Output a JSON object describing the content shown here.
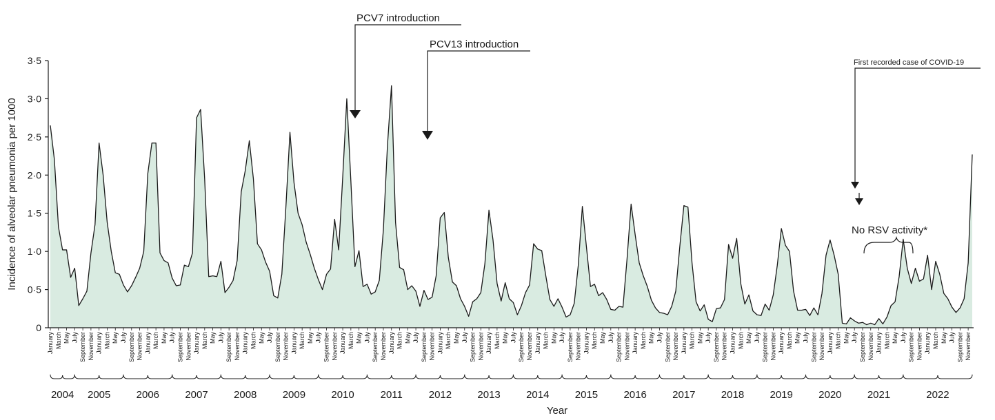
{
  "chart_data": {
    "type": "area",
    "title": "",
    "xlabel": "Year",
    "ylabel": "Incidence of alveolar pneumonia per 1000",
    "ylim": [
      0,
      3.5
    ],
    "yticks": [
      "0",
      "0·5",
      "1·0",
      "1·5",
      "2·0",
      "2·5",
      "3·0",
      "3·5"
    ],
    "ytick_values": [
      0,
      0.5,
      1.0,
      1.5,
      2.0,
      2.5,
      3.0,
      3.5
    ],
    "colors": {
      "fill": "#d9ebe1",
      "line": "#1a1a1a"
    },
    "grid": false,
    "legend": "none",
    "season_start_month": "July",
    "series": [
      {
        "values": [
          2.65,
          2.2,
          1.32,
          1.02,
          1.02,
          0.66,
          0.78,
          0.29,
          0.38,
          0.48,
          0.98,
          1.35,
          2.42,
          2.0,
          1.38,
          1.0,
          0.72,
          0.7,
          0.56,
          0.47,
          0.55,
          0.66,
          0.78,
          1.0,
          2.02,
          2.42,
          2.42,
          0.98,
          0.88,
          0.85,
          0.65,
          0.55,
          0.56,
          0.82,
          0.8,
          0.98,
          2.75,
          2.86,
          1.95,
          0.67,
          0.68,
          0.67,
          0.87,
          0.46,
          0.53,
          0.62,
          0.88,
          1.78,
          2.06,
          2.45,
          1.95,
          1.1,
          1.02,
          0.86,
          0.74,
          0.42,
          0.39,
          0.7,
          1.58,
          2.56,
          1.9,
          1.5,
          1.35,
          1.12,
          0.96,
          0.78,
          0.63,
          0.5,
          0.7,
          0.77,
          1.42,
          1.02,
          1.98,
          3.0,
          1.92,
          0.8,
          1.01,
          0.54,
          0.57,
          0.44,
          0.47,
          0.62,
          1.28,
          2.38,
          3.17,
          1.38,
          0.79,
          0.76,
          0.5,
          0.55,
          0.48,
          0.28,
          0.49,
          0.37,
          0.4,
          0.68,
          1.44,
          1.51,
          0.92,
          0.6,
          0.55,
          0.38,
          0.28,
          0.15,
          0.34,
          0.38,
          0.46,
          0.84,
          1.54,
          1.15,
          0.58,
          0.35,
          0.59,
          0.38,
          0.33,
          0.17,
          0.29,
          0.46,
          0.56,
          1.1,
          1.03,
          1.01,
          0.68,
          0.37,
          0.28,
          0.38,
          0.27,
          0.14,
          0.17,
          0.32,
          0.82,
          1.59,
          1.06,
          0.54,
          0.57,
          0.42,
          0.46,
          0.37,
          0.24,
          0.23,
          0.28,
          0.27,
          0.9,
          1.62,
          1.22,
          0.85,
          0.68,
          0.54,
          0.36,
          0.26,
          0.2,
          0.19,
          0.17,
          0.28,
          0.48,
          1.07,
          1.6,
          1.58,
          0.85,
          0.34,
          0.22,
          0.3,
          0.11,
          0.08,
          0.25,
          0.26,
          0.37,
          1.09,
          0.91,
          1.17,
          0.58,
          0.31,
          0.43,
          0.22,
          0.17,
          0.16,
          0.31,
          0.23,
          0.43,
          0.82,
          1.3,
          1.08,
          1.0,
          0.48,
          0.23,
          0.23,
          0.24,
          0.16,
          0.26,
          0.17,
          0.45,
          0.95,
          1.15,
          0.95,
          0.7,
          0.06,
          0.05,
          0.13,
          0.09,
          0.06,
          0.07,
          0.04,
          0.06,
          0.04,
          0.12,
          0.05,
          0.14,
          0.29,
          0.34,
          0.67,
          1.16,
          0.78,
          0.58,
          0.78,
          0.61,
          0.64,
          0.95,
          0.5,
          0.87,
          0.7,
          0.45,
          0.38,
          0.27,
          0.2,
          0.26,
          0.38,
          0.85,
          2.27
        ]
      }
    ],
    "year_labels": [
      "2004",
      "2005",
      "2006",
      "2007",
      "2008",
      "2009",
      "2010",
      "2011",
      "2012",
      "2013",
      "2014",
      "2015",
      "2016",
      "2017",
      "2018",
      "2019",
      "2020",
      "2021",
      "2022"
    ],
    "month_labels": [
      "January",
      "March",
      "May",
      "July",
      "September",
      "November"
    ],
    "annotations": [
      {
        "text": "PCV7 introduction"
      },
      {
        "text": "PCV13 introduction"
      },
      {
        "text": "First recorded case of COVID-19"
      },
      {
        "text": "No RSV activity*"
      }
    ]
  }
}
